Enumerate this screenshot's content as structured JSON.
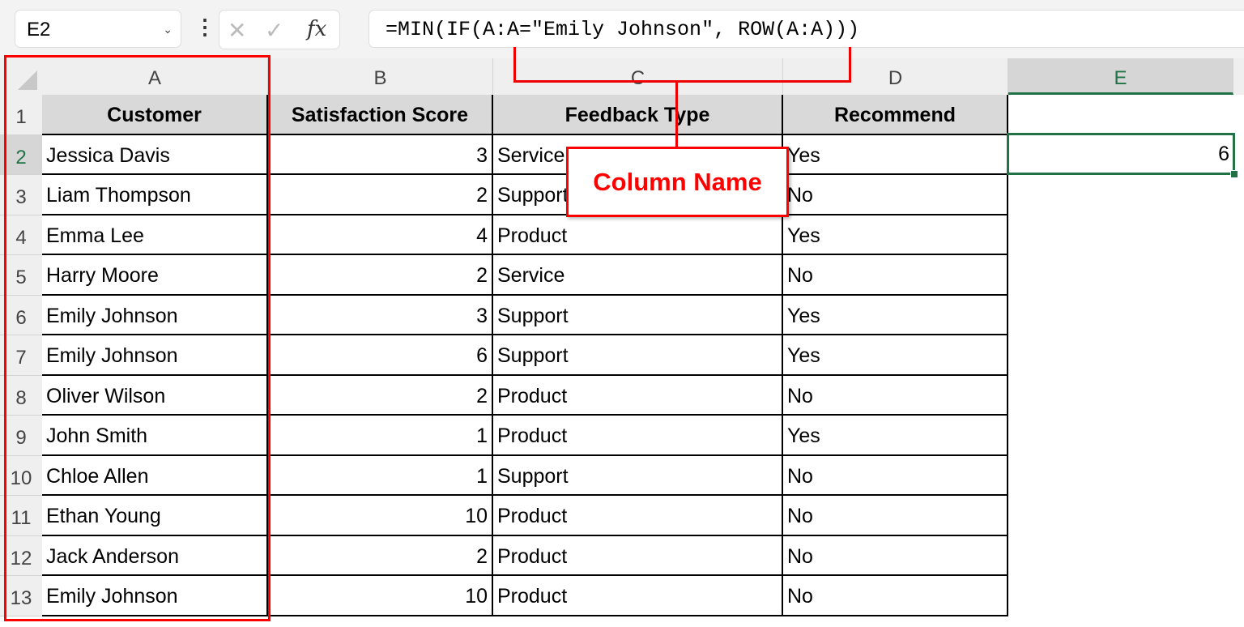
{
  "name_box": "E2",
  "formula_bar": {
    "cancel_icon": "x-icon",
    "enter_icon": "check-icon",
    "fx_label": "fx",
    "formula": "=MIN(IF(A:A=\"Emily Johnson\", ROW(A:A)))"
  },
  "columns": [
    "A",
    "B",
    "C",
    "D",
    "E"
  ],
  "rows": [
    "1",
    "2",
    "3",
    "4",
    "5",
    "6",
    "7",
    "8",
    "9",
    "10",
    "11",
    "12",
    "13"
  ],
  "headers": [
    "Customer",
    "Satisfaction Score",
    "Feedback Type",
    "Recommend"
  ],
  "data": [
    [
      "Jessica Davis",
      "3",
      "Service",
      "Yes"
    ],
    [
      "Liam Thompson",
      "2",
      "Support",
      "No"
    ],
    [
      "Emma Lee",
      "4",
      "Product",
      "Yes"
    ],
    [
      "Harry Moore",
      "2",
      "Service",
      "No"
    ],
    [
      "Emily Johnson",
      "3",
      "Support",
      "Yes"
    ],
    [
      "Emily Johnson",
      "6",
      "Support",
      "Yes"
    ],
    [
      "Oliver Wilson",
      "2",
      "Product",
      "No"
    ],
    [
      "John Smith",
      "1",
      "Product",
      "Yes"
    ],
    [
      "Chloe Allen",
      "1",
      "Support",
      "No"
    ],
    [
      "Ethan Young",
      "10",
      "Product",
      "No"
    ],
    [
      "Jack Anderson",
      "2",
      "Product",
      "No"
    ],
    [
      "Emily Johnson",
      "10",
      "Product",
      "No"
    ]
  ],
  "result_cell": "6",
  "annotation": "Column Name",
  "colors": {
    "accent": "#217346",
    "annotation": "#ff0000"
  }
}
